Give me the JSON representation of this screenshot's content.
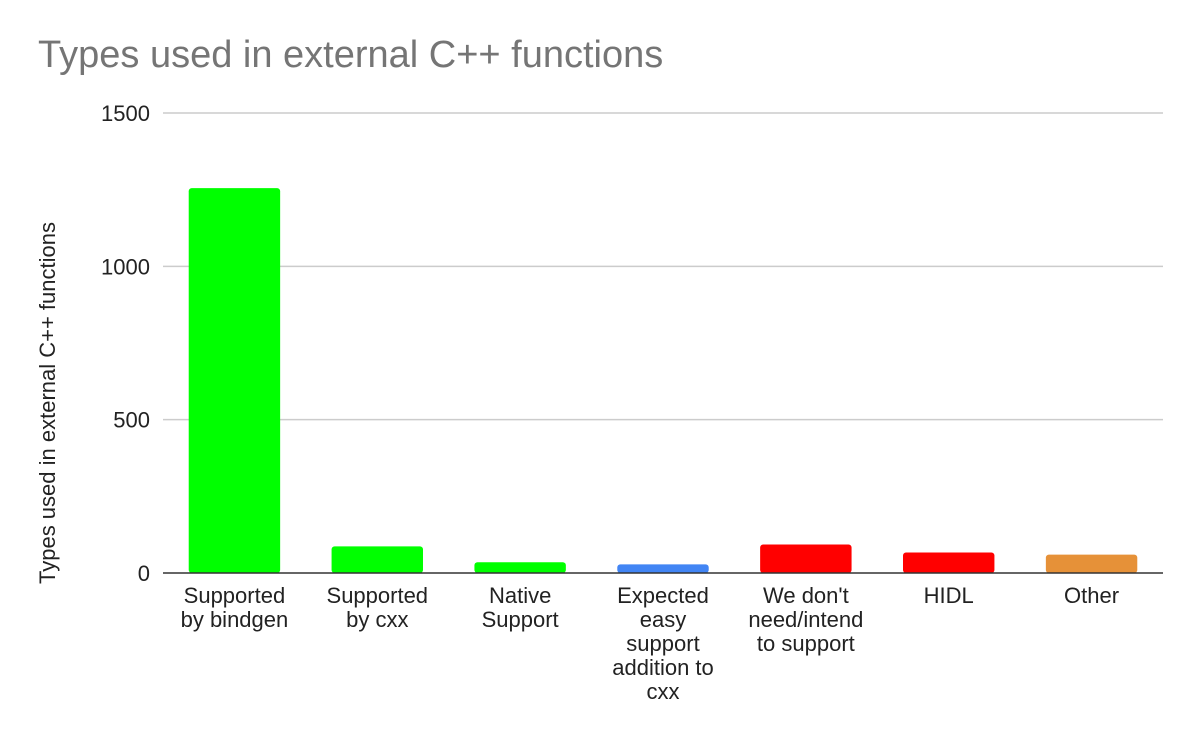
{
  "chart_data": {
    "type": "bar",
    "title": "Types used in external C++ functions",
    "xlabel": "",
    "ylabel": "Types used in external C++ functions",
    "ylim": [
      0,
      1500
    ],
    "yticks": [
      0,
      500,
      1000,
      1500
    ],
    "grid": true,
    "legend": "none",
    "categories": [
      [
        "Supported",
        "by bindgen"
      ],
      [
        "Supported",
        "by cxx"
      ],
      [
        "Native",
        "Support"
      ],
      [
        "Expected",
        "easy",
        "support",
        "addition to",
        "cxx"
      ],
      [
        "We don't",
        "need/intend",
        "to support"
      ],
      [
        "HIDL"
      ],
      [
        "Other"
      ]
    ],
    "values": [
      1255,
      87,
      35,
      28,
      93,
      67,
      60
    ],
    "colors": [
      "#00ff00",
      "#00ff00",
      "#00ff00",
      "#4285f4",
      "#ff0000",
      "#ff0000",
      "#e69138"
    ]
  }
}
